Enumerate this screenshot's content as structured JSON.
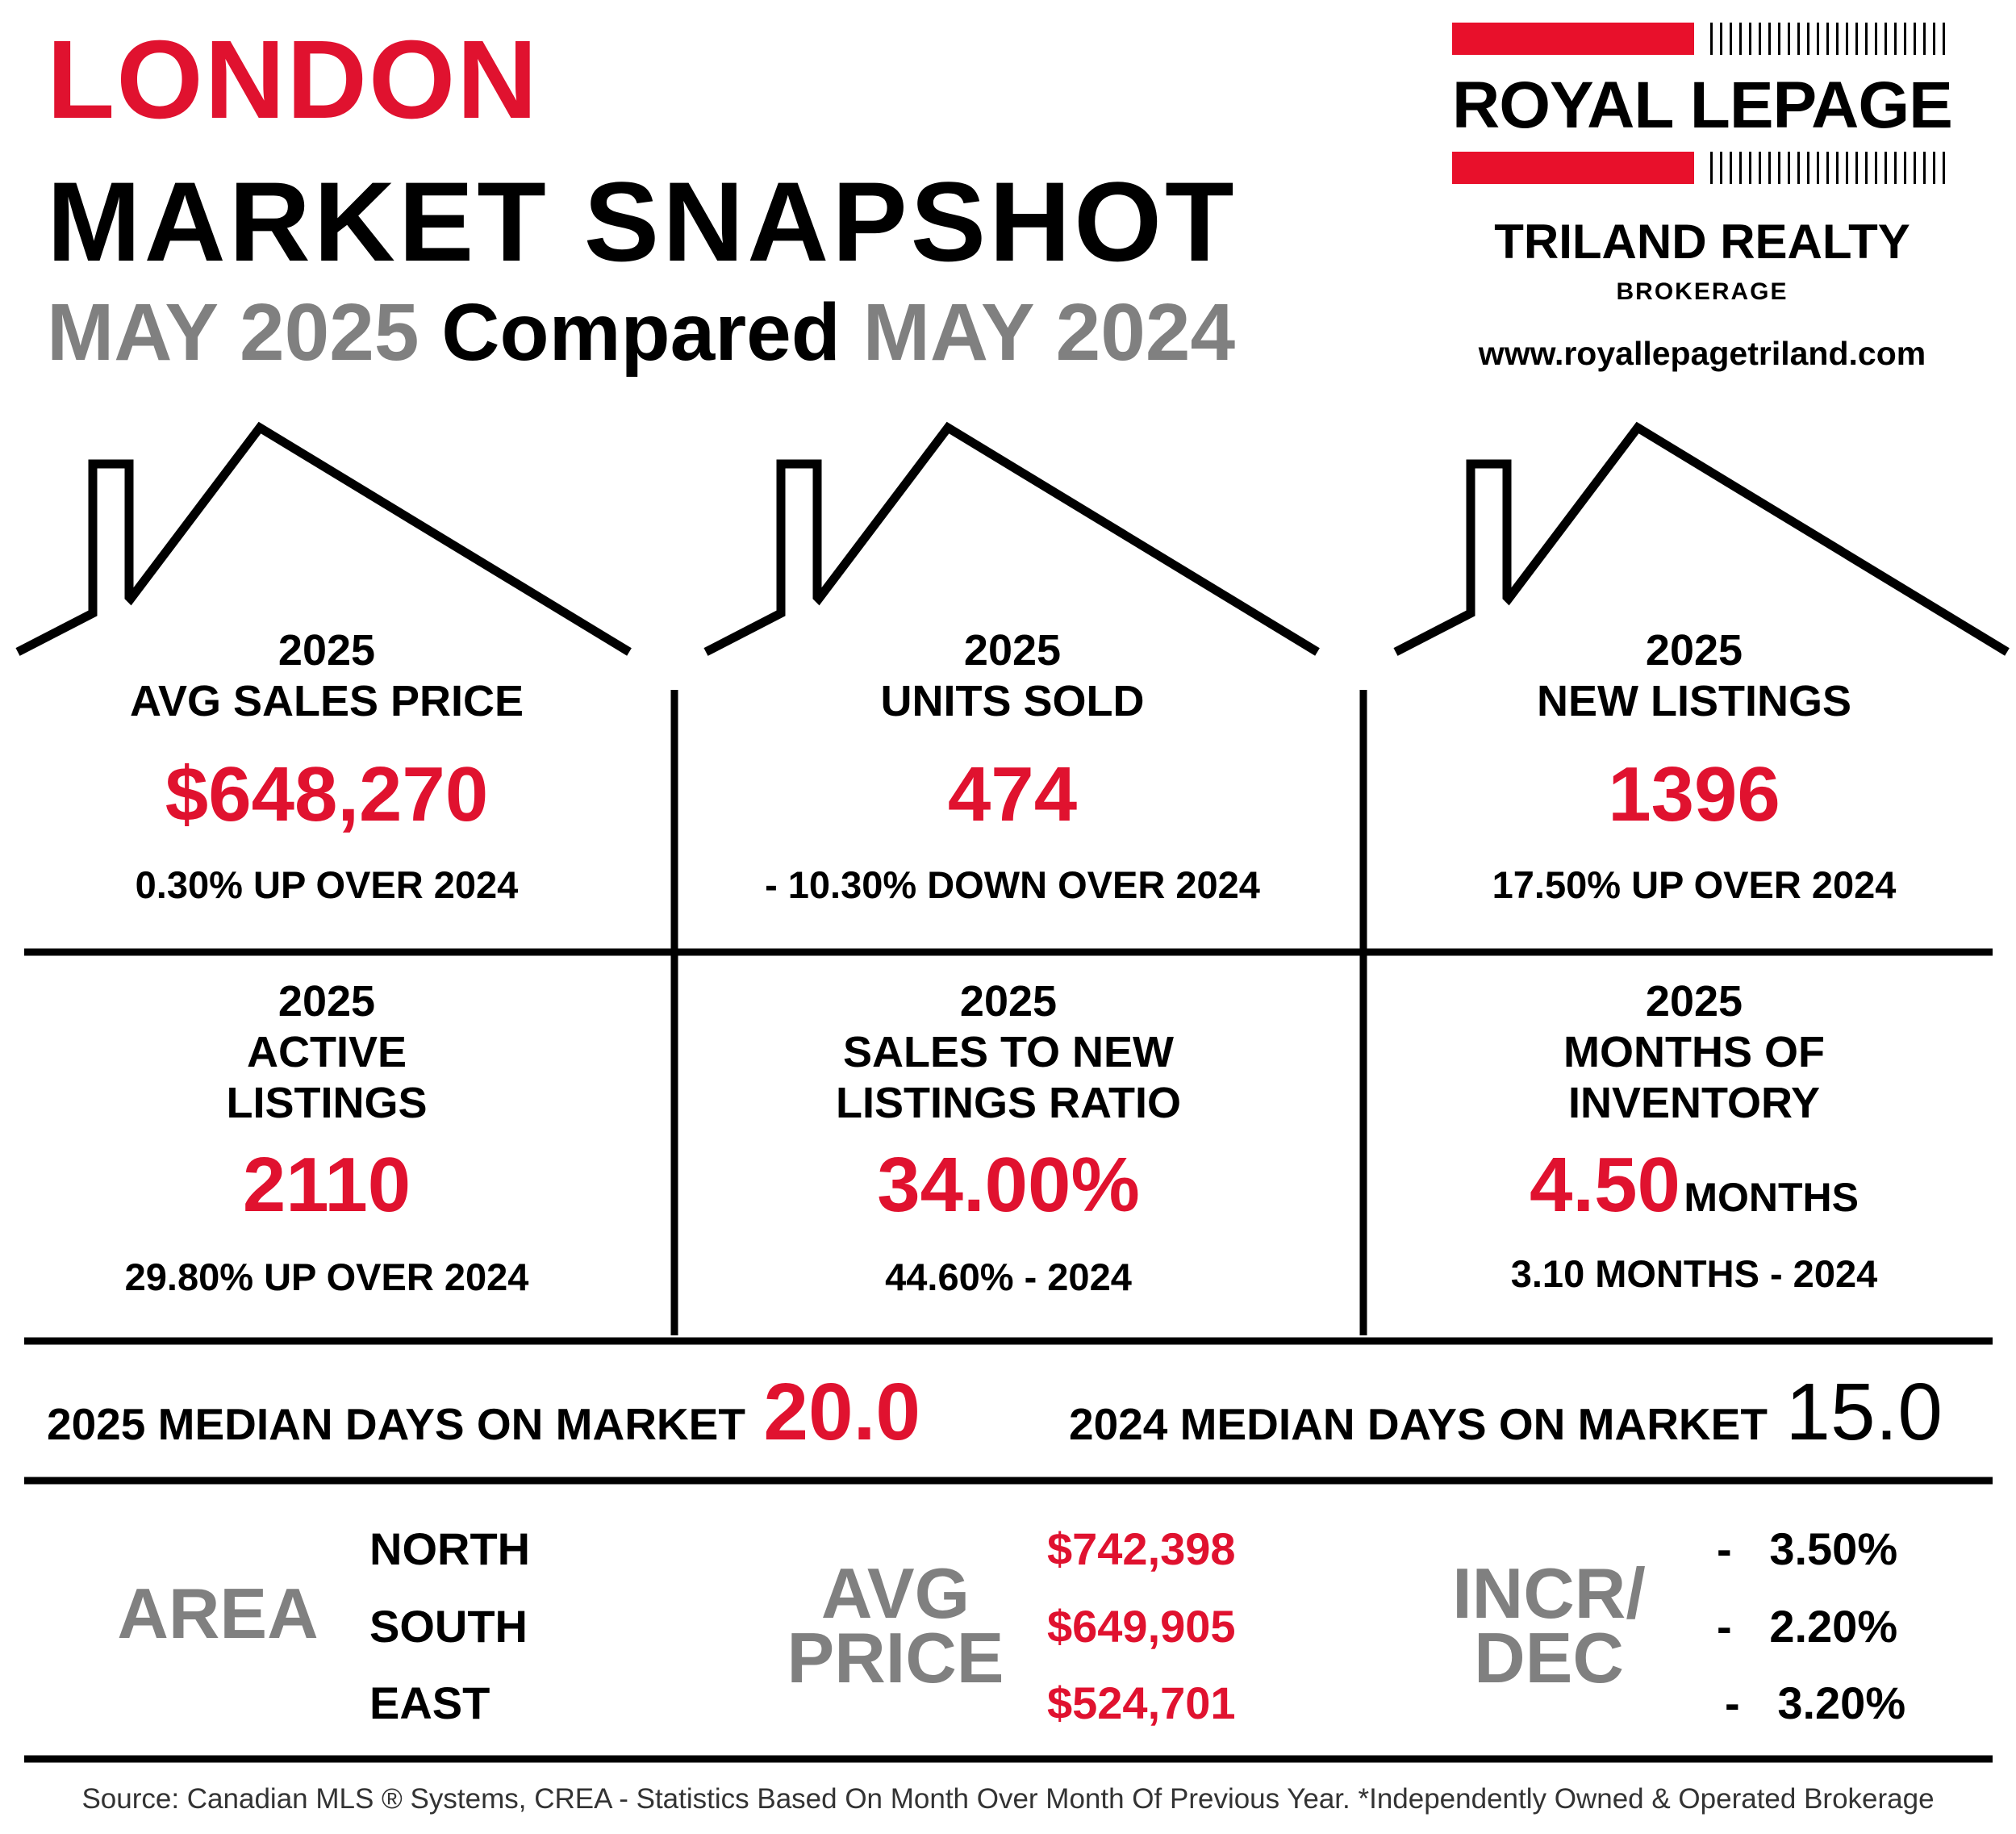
{
  "header": {
    "city": "LONDON",
    "title": "MARKET SNAPSHOT",
    "subtitle_current": "MAY 2025",
    "subtitle_mid": "Compared",
    "subtitle_previous": "MAY 2024"
  },
  "logo": {
    "brand": "ROYAL LEPAGE",
    "company": "TRILAND REALTY",
    "sub": "BROKERAGE",
    "url": "www.royallepagetriland.com",
    "colors": {
      "brand_red": "#e8102b"
    }
  },
  "colors": {
    "accent_red": "#e0122f",
    "grey": "#808080",
    "text": "#000000"
  },
  "stats": [
    {
      "year": "2025",
      "label_lines": [
        "AVG SALES PRICE"
      ],
      "value": "$648,270",
      "unit": "",
      "compare": "0.30% UP OVER 2024"
    },
    {
      "year": "2025",
      "label_lines": [
        "UNITS SOLD"
      ],
      "value": "474",
      "unit": "",
      "compare": "- 10.30% DOWN OVER 2024"
    },
    {
      "year": "2025",
      "label_lines": [
        "NEW LISTINGS"
      ],
      "value": "1396",
      "unit": "",
      "compare": "17.50% UP OVER 2024"
    },
    {
      "year": "2025",
      "label_lines": [
        "ACTIVE",
        "LISTINGS"
      ],
      "value": "2110",
      "unit": "",
      "compare": "29.80% UP OVER 2024"
    },
    {
      "year": "2025",
      "label_lines": [
        "SALES TO NEW",
        "LISTINGS RATIO"
      ],
      "value": "34.00%",
      "unit": "",
      "compare": "44.60% - 2024"
    },
    {
      "year": "2025",
      "label_lines": [
        "MONTHS OF",
        "INVENTORY"
      ],
      "value": "4.50",
      "unit": "MONTHS",
      "compare": "3.10 MONTHS - 2024"
    }
  ],
  "days_on_market": {
    "current_label": "2025 MEDIAN DAYS ON MARKET",
    "current_value": "20.0",
    "previous_label": "2024 MEDIAN DAYS ON MARKET",
    "previous_value": "15.0"
  },
  "areas": {
    "area_heading": "AREA",
    "price_heading_lines": [
      "AVG",
      "PRICE"
    ],
    "change_heading_lines": [
      "INCR/",
      "DEC"
    ],
    "rows": [
      {
        "name": "NORTH",
        "avg_price": "$742,398",
        "change": "-   3.50%"
      },
      {
        "name": "SOUTH",
        "avg_price": "$649,905",
        "change": "-   2.20%"
      },
      {
        "name": "EAST",
        "avg_price": "$524,701",
        "change": "-   3.20%"
      }
    ]
  },
  "footer": "Source: Canadian MLS ® Systems, CREA - Statistics Based On Month Over Month Of Previous Year.  *Independently Owned & Operated Brokerage"
}
